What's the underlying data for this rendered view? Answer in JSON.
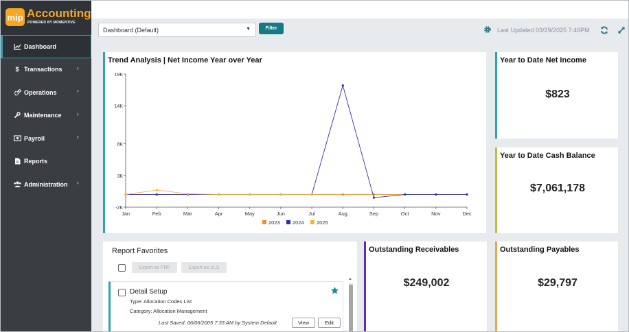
{
  "app": {
    "logo_badge": "mip",
    "title": "Accounting",
    "subtitle": "POWERED BY MOMENTIVE"
  },
  "sidebar": {
    "items": [
      {
        "label": "Dashboard",
        "icon": "chart-line-icon",
        "active": true,
        "chevron": false
      },
      {
        "label": "Transactions",
        "icon": "dollar-icon",
        "active": false,
        "chevron": true
      },
      {
        "label": "Operations",
        "icon": "gears-icon",
        "active": false,
        "chevron": true
      },
      {
        "label": "Maintenance",
        "icon": "wrench-icon",
        "active": false,
        "chevron": true
      },
      {
        "label": "Payroll",
        "icon": "money-icon",
        "active": false,
        "chevron": true
      },
      {
        "label": "Reports",
        "icon": "document-icon",
        "active": false,
        "chevron": false
      },
      {
        "label": "Administration",
        "icon": "users-icon",
        "active": false,
        "chevron": true
      }
    ]
  },
  "toolbar": {
    "dashboard_select": "Dashboard (Default)",
    "filter_label": "Filter",
    "last_updated": "Last Updated 03/29/2025 7:46PM"
  },
  "trend": {
    "title": "Trend Analysis | Net Income Year over Year"
  },
  "chart_data": {
    "type": "line",
    "title": "Trend Analysis | Net Income Year over Year",
    "categories": [
      "Jan",
      "Feb",
      "Mar",
      "Apr",
      "May",
      "Jun",
      "Jul",
      "Aug",
      "Sep",
      "Oct",
      "Nov",
      "Dec"
    ],
    "y_ticks": [
      "19K",
      "14K",
      "8K",
      "3K",
      "-2K"
    ],
    "ylim": [
      -2000,
      19000
    ],
    "legend_position": "bottom",
    "grid": false,
    "series": [
      {
        "name": "2023",
        "color": "#f28c28",
        "values": [
          0,
          0,
          0,
          0,
          0,
          0,
          0,
          0,
          0,
          0,
          0,
          0
        ]
      },
      {
        "name": "2024",
        "color": "#2b2fb5",
        "values": [
          0,
          0,
          0,
          0,
          0,
          0,
          0,
          17200,
          -500,
          0,
          0,
          0
        ]
      },
      {
        "name": "2025",
        "color": "#f5b335",
        "values": [
          0,
          700,
          100,
          0,
          0,
          0,
          0,
          null,
          null,
          null,
          null,
          null
        ]
      }
    ]
  },
  "kpis": {
    "net_income": {
      "title": "Year to Date Net Income",
      "value": "$823"
    },
    "cash_balance": {
      "title": "Year to Date Cash Balance",
      "value": "$7,061,178"
    },
    "receivables": {
      "title": "Outstanding Receivables",
      "value": "$249,002"
    },
    "payables": {
      "title": "Outstanding Payables",
      "value": "$29,797"
    }
  },
  "favorites": {
    "title": "Report Favorites",
    "export_pdf": "Export as PDF",
    "export_xls": "Export as XLS",
    "item": {
      "name": "Detail Setup",
      "type": "Type: Allocation Codes List",
      "category": "Category: Allocation Management",
      "saved": "Last Saved: 06/06/2005 7:33 AM by System Default",
      "view_label": "View",
      "edit_label": "Edit"
    }
  }
}
